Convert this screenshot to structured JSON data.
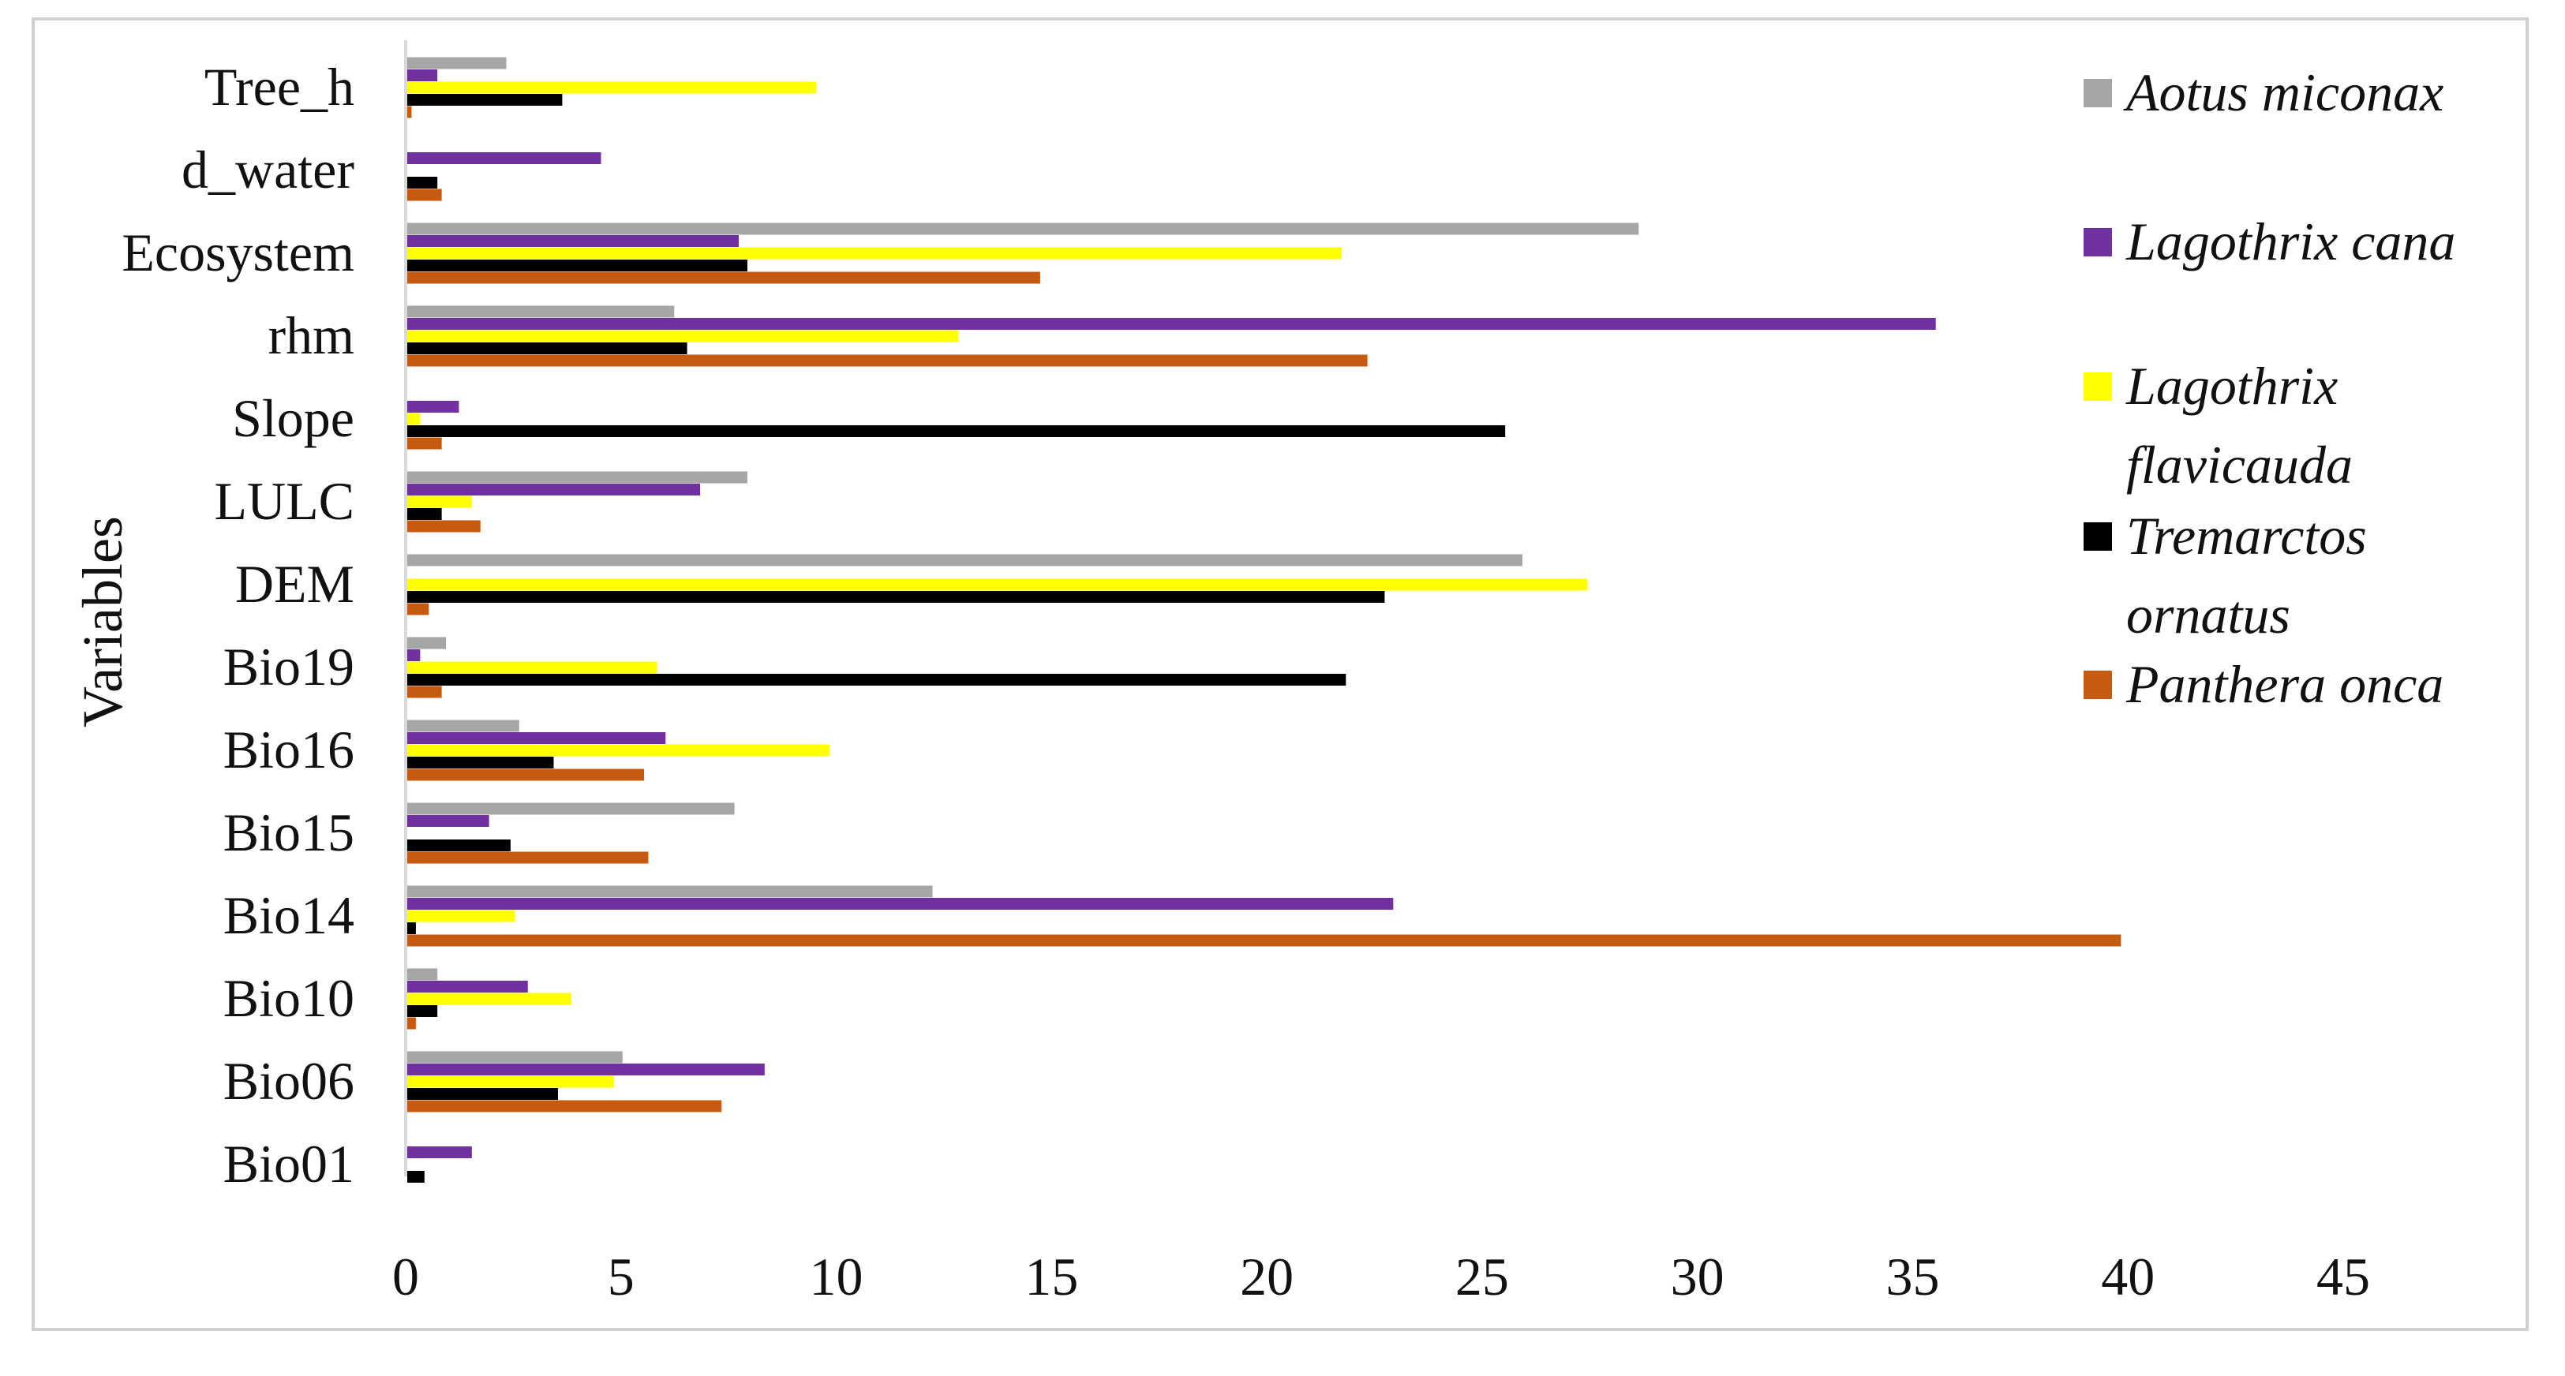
{
  "chart_data": {
    "type": "bar",
    "orientation": "horizontal",
    "ylabel": "Variables",
    "xlabel": "",
    "xlim": [
      0,
      45
    ],
    "xticks": [
      "0",
      "5",
      "10",
      "15",
      "20",
      "25",
      "30",
      "35",
      "40",
      "45"
    ],
    "grid": false,
    "legend_position": "right",
    "categories": [
      "Tree_h",
      "d_water",
      "Ecosystem",
      "rhm",
      "Slope",
      "LULC",
      "DEM",
      "Bio19",
      "Bio16",
      "Bio15",
      "Bio14",
      "Bio10",
      "Bio06",
      "Bio01"
    ],
    "series": [
      {
        "name": "Aotus miconax",
        "color": "#a6a6a6",
        "legend_lines": [
          "Aotus miconax"
        ],
        "values": [
          2.3,
          0,
          28.6,
          6.2,
          0,
          7.9,
          25.9,
          0.9,
          2.6,
          7.6,
          12.2,
          0.7,
          5.0,
          0
        ]
      },
      {
        "name": "Lagothrix cana",
        "color": "#7030a0",
        "legend_lines": [
          "Lagothrix cana"
        ],
        "values": [
          0.7,
          4.5,
          7.7,
          35.5,
          1.2,
          6.8,
          0,
          0.3,
          6.0,
          1.9,
          22.9,
          2.8,
          8.3,
          1.5
        ]
      },
      {
        "name": "Lagothrix flavicauda",
        "color": "#ffff00",
        "legend_lines": [
          "Lagothrix",
          "flavicauda"
        ],
        "values": [
          9.5,
          0,
          21.7,
          12.8,
          0.3,
          1.5,
          27.4,
          5.8,
          9.8,
          0,
          2.5,
          3.8,
          4.8,
          0
        ]
      },
      {
        "name": "Tremarctos ornatus",
        "color": "#000000",
        "legend_lines": [
          "Tremarctos",
          "ornatus"
        ],
        "values": [
          3.6,
          0.7,
          7.9,
          6.5,
          25.5,
          0.8,
          22.7,
          21.8,
          3.4,
          2.4,
          0.2,
          0.7,
          3.5,
          0.4
        ]
      },
      {
        "name": "Panthera onca",
        "color": "#c55a11",
        "legend_lines": [
          "Panthera onca"
        ],
        "values": [
          0.1,
          0.8,
          14.7,
          22.3,
          0.8,
          1.7,
          0.5,
          0.8,
          5.5,
          5.6,
          39.8,
          0.2,
          7.3,
          0
        ]
      }
    ]
  }
}
